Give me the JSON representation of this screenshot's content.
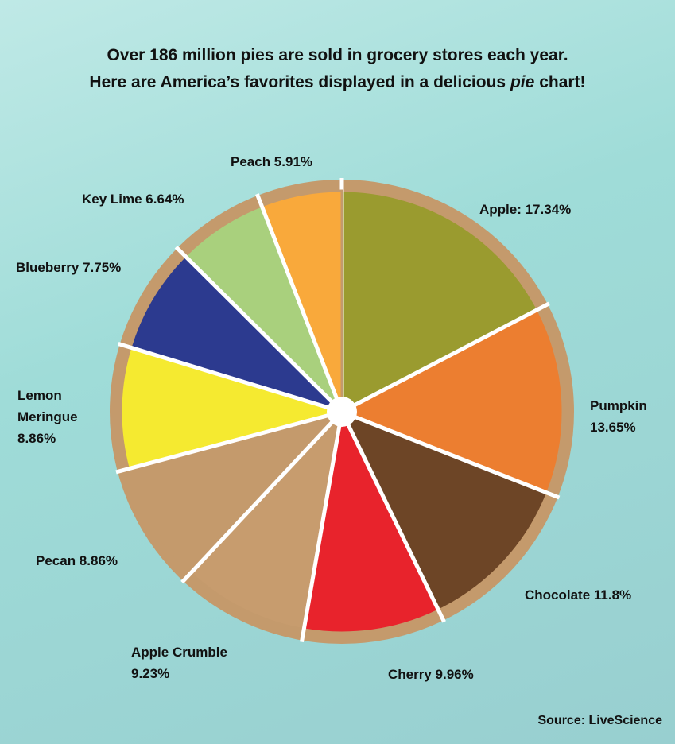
{
  "chart_data": {
    "type": "pie",
    "title": "Over 186 million pies are sold in grocery stores each year.",
    "subtitle_parts": [
      "Here are America’s favorites displayed in a delicious",
      "pie",
      "chart!"
    ],
    "values": [
      17.34,
      13.65,
      11.8,
      9.96,
      9.23,
      8.86,
      8.86,
      7.75,
      6.64,
      5.91
    ],
    "value_labels": [
      "Apple: 17.34%",
      "Pumpkin 13.65%",
      "Chocolate 11.8%",
      "Cherry 9.96%",
      "Apple Crumble 9.23%",
      "Pecan 8.86%",
      "Lemon Meringue 8.86%",
      "Blueberry 7.75%",
      "Key Lime 6.64%",
      "Peach 5.91%"
    ],
    "colors": [
      "#9a9b2f",
      "#ec7e30",
      "#6d4526",
      "#e8232c",
      "#c79c6e",
      "#c49a6c",
      "#f5ea30",
      "#2c3a8f",
      "#a9d07d",
      "#f9a93b"
    ],
    "source": "Source: LiveScience"
  }
}
